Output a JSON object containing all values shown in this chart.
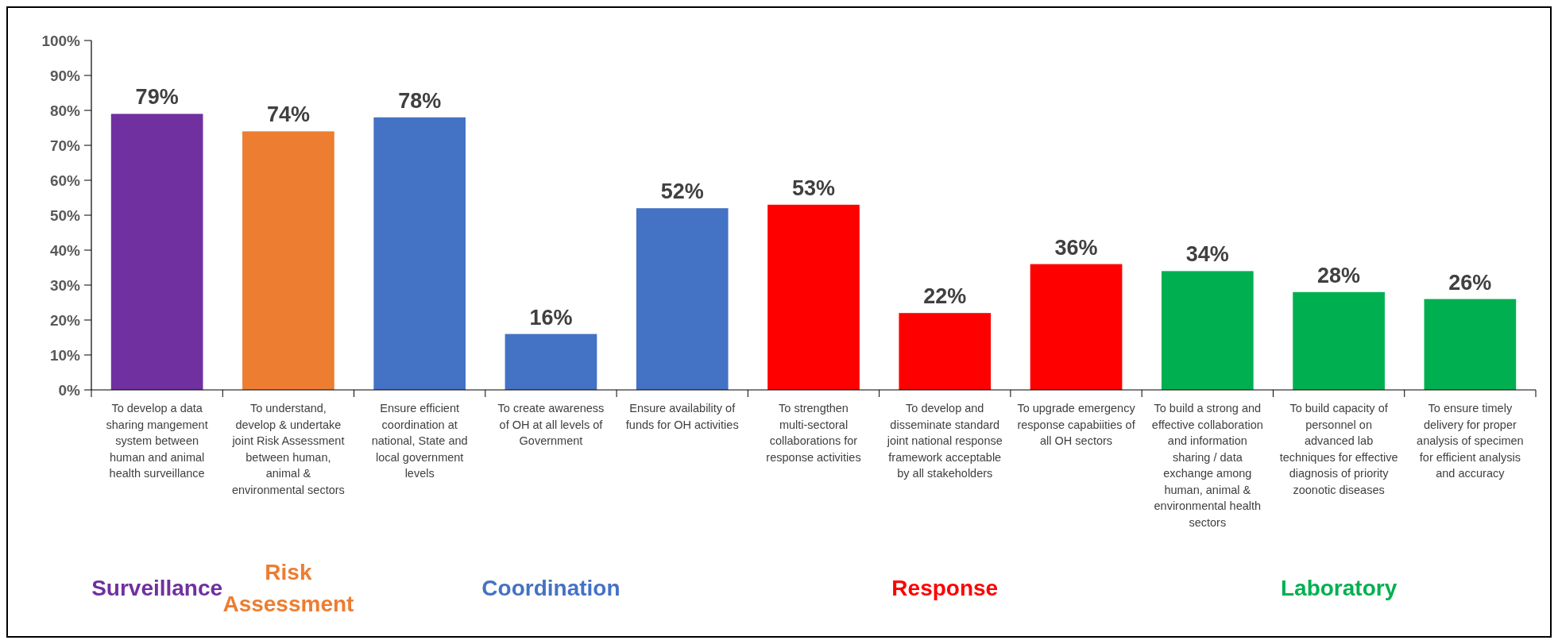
{
  "chart_data": {
    "type": "bar",
    "categories": [
      "To develop a data sharing mangement system between human and animal health surveillance",
      "To understand, develop & undertake joint Risk Assessment between human, animal & environmental sectors",
      "Ensure efficient coordination at national, State and local government levels",
      "To create awareness of OH at all levels of Government",
      "Ensure availability of funds for OH activities",
      "To strengthen multi-sectoral collaborations for response activities",
      "To develop and disseminate standard joint national response framework acceptable by all stakeholders",
      "To upgrade emergency response capabiities of all OH sectors",
      "To build a strong and effective collaboration and information sharing / data exchange among human, animal & environmental health sectors",
      "To build capacity of personnel on advanced lab techniques for effective diagnosis of priority zoonotic diseases",
      "To ensure timely delivery for proper analysis of specimen for efficient analysis and accuracy"
    ],
    "values": [
      79,
      74,
      78,
      16,
      52,
      53,
      22,
      36,
      34,
      28,
      26
    ],
    "value_labels": [
      "79%",
      "74%",
      "78%",
      "16%",
      "52%",
      "53%",
      "22%",
      "36%",
      "34%",
      "28%",
      "26%"
    ],
    "colors": [
      "#7030a0",
      "#ed7d31",
      "#4472c4",
      "#4472c4",
      "#4472c4",
      "#ff0000",
      "#ff0000",
      "#ff0000",
      "#00b050",
      "#00b050",
      "#00b050"
    ],
    "ylim": [
      0,
      100
    ],
    "yticks": [
      {
        "value": 0,
        "label": "0%"
      },
      {
        "value": 10,
        "label": "10%"
      },
      {
        "value": 20,
        "label": "20%"
      },
      {
        "value": 30,
        "label": "30%"
      },
      {
        "value": 40,
        "label": "40%"
      },
      {
        "value": 50,
        "label": "50%"
      },
      {
        "value": 60,
        "label": "60%"
      },
      {
        "value": 70,
        "label": "70%"
      },
      {
        "value": 80,
        "label": "80%"
      },
      {
        "value": 90,
        "label": "90%"
      },
      {
        "value": 100,
        "label": "100%"
      }
    ],
    "annotations": [
      "Surveillance",
      "Risk Assessment",
      "Coordination",
      "Response",
      "Laboratory"
    ],
    "grid": false
  }
}
